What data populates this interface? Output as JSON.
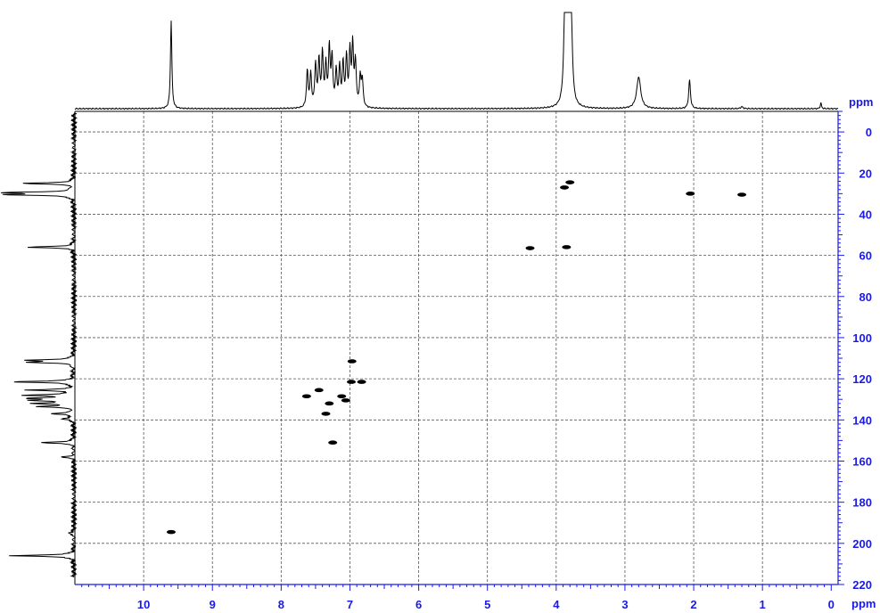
{
  "chart_data": {
    "type": "heatmap",
    "title": "",
    "colors": {
      "axis": "#1a1ae6",
      "trace": "#000000",
      "grid": "#555555",
      "frame": "#000000"
    },
    "x_axis": {
      "label": "ppm",
      "lim": [
        11.0,
        -0.1
      ],
      "ticks": [
        10,
        9,
        8,
        7,
        6,
        5,
        4,
        3,
        2,
        1,
        0
      ],
      "minor_step": 0.1,
      "reversed": true
    },
    "y_axis": {
      "label": "ppm",
      "lim": [
        -10,
        220
      ],
      "ticks": [
        0,
        20,
        40,
        60,
        80,
        100,
        120,
        140,
        160,
        180,
        200,
        220
      ],
      "minor_step": 2,
      "position": "right"
    },
    "grid": true,
    "top_projection_label": "ppm",
    "top_projection": [
      {
        "x": 9.6,
        "height": 0.92,
        "width": 0.012
      },
      {
        "x": 7.62,
        "height": 0.38,
        "width": 0.014
      },
      {
        "x": 7.57,
        "height": 0.34,
        "width": 0.014
      },
      {
        "x": 7.5,
        "height": 0.44,
        "width": 0.014
      },
      {
        "x": 7.45,
        "height": 0.48,
        "width": 0.014
      },
      {
        "x": 7.4,
        "height": 0.55,
        "width": 0.014
      },
      {
        "x": 7.35,
        "height": 0.42,
        "width": 0.014
      },
      {
        "x": 7.3,
        "height": 0.6,
        "width": 0.014
      },
      {
        "x": 7.26,
        "height": 0.5,
        "width": 0.014
      },
      {
        "x": 7.2,
        "height": 0.36,
        "width": 0.014
      },
      {
        "x": 7.15,
        "height": 0.4,
        "width": 0.014
      },
      {
        "x": 7.1,
        "height": 0.44,
        "width": 0.014
      },
      {
        "x": 7.05,
        "height": 0.5,
        "width": 0.014
      },
      {
        "x": 7.0,
        "height": 0.55,
        "width": 0.014
      },
      {
        "x": 6.96,
        "height": 0.62,
        "width": 0.014
      },
      {
        "x": 6.92,
        "height": 0.46,
        "width": 0.014
      },
      {
        "x": 6.85,
        "height": 0.3,
        "width": 0.014
      },
      {
        "x": 6.82,
        "height": 0.28,
        "width": 0.014
      },
      {
        "x": 3.87,
        "height": 1.2,
        "width": 0.02
      },
      {
        "x": 3.82,
        "height": 1.2,
        "width": 0.02
      },
      {
        "x": 3.78,
        "height": 0.75,
        "width": 0.02
      },
      {
        "x": 2.8,
        "height": 0.33,
        "width": 0.035
      },
      {
        "x": 2.06,
        "height": 0.3,
        "width": 0.015
      },
      {
        "x": 1.3,
        "height": 0.02,
        "width": 0.02
      },
      {
        "x": 0.15,
        "height": 0.06,
        "width": 0.01
      }
    ],
    "left_projection": [
      {
        "y": 25,
        "height": 0.75
      },
      {
        "y": 29.5,
        "height": 1.0
      },
      {
        "y": 30.5,
        "height": 1.0
      },
      {
        "y": 56,
        "height": 0.68
      },
      {
        "y": 111,
        "height": 0.7
      },
      {
        "y": 112,
        "height": 0.6
      },
      {
        "y": 121.5,
        "height": 0.95
      },
      {
        "y": 125.5,
        "height": 0.65
      },
      {
        "y": 128,
        "height": 0.72
      },
      {
        "y": 129.5,
        "height": 0.6
      },
      {
        "y": 130.5,
        "height": 0.6
      },
      {
        "y": 132,
        "height": 0.55
      },
      {
        "y": 133.5,
        "height": 0.5
      },
      {
        "y": 137,
        "height": 0.35
      },
      {
        "y": 139.5,
        "height": 0.2
      },
      {
        "y": 151,
        "height": 0.5
      },
      {
        "y": 158,
        "height": 0.18
      },
      {
        "y": 195,
        "height": 0.1
      },
      {
        "y": 206,
        "height": 0.95
      }
    ],
    "cross_peaks": [
      {
        "x": 9.6,
        "y": 194.5
      },
      {
        "x": 7.25,
        "y": 151
      },
      {
        "x": 7.35,
        "y": 137
      },
      {
        "x": 7.63,
        "y": 128.5
      },
      {
        "x": 7.45,
        "y": 125.5
      },
      {
        "x": 7.3,
        "y": 132
      },
      {
        "x": 7.12,
        "y": 128.5
      },
      {
        "x": 7.06,
        "y": 130.5
      },
      {
        "x": 6.97,
        "y": 111.5
      },
      {
        "x": 6.98,
        "y": 121.5
      },
      {
        "x": 6.83,
        "y": 121.5
      },
      {
        "x": 3.85,
        "y": 56
      },
      {
        "x": 3.8,
        "y": 24.5
      },
      {
        "x": 4.38,
        "y": 56.5
      },
      {
        "x": 2.05,
        "y": 30
      },
      {
        "x": 1.3,
        "y": 30.5
      },
      {
        "x": 3.88,
        "y": 27
      }
    ]
  }
}
